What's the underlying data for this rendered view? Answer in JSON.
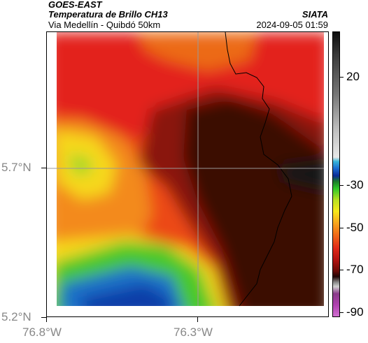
{
  "header": {
    "satellite": "GOES-EAST",
    "product": "Temperatura de Brillo CH13",
    "organization": "SIATA",
    "region": "Via Medellín - Quibdó 50km",
    "datetime": "2024-09-05 01:59"
  },
  "axes": {
    "lat_labels": [
      "5.7°N",
      "5.2°N"
    ],
    "lon_labels": [
      "76.8°W",
      "76.3°W"
    ]
  },
  "colorbar": {
    "labels": [
      "20",
      "-30",
      "-50",
      "-70",
      "-90"
    ]
  },
  "colors": {
    "cold_black": "#1a0a08",
    "deep_red": "#6a0f08",
    "red": "#dd1e12",
    "orange": "#f5821e",
    "yellow": "#f6e81a",
    "green": "#2ec828",
    "blue": "#0a3ca8"
  }
}
